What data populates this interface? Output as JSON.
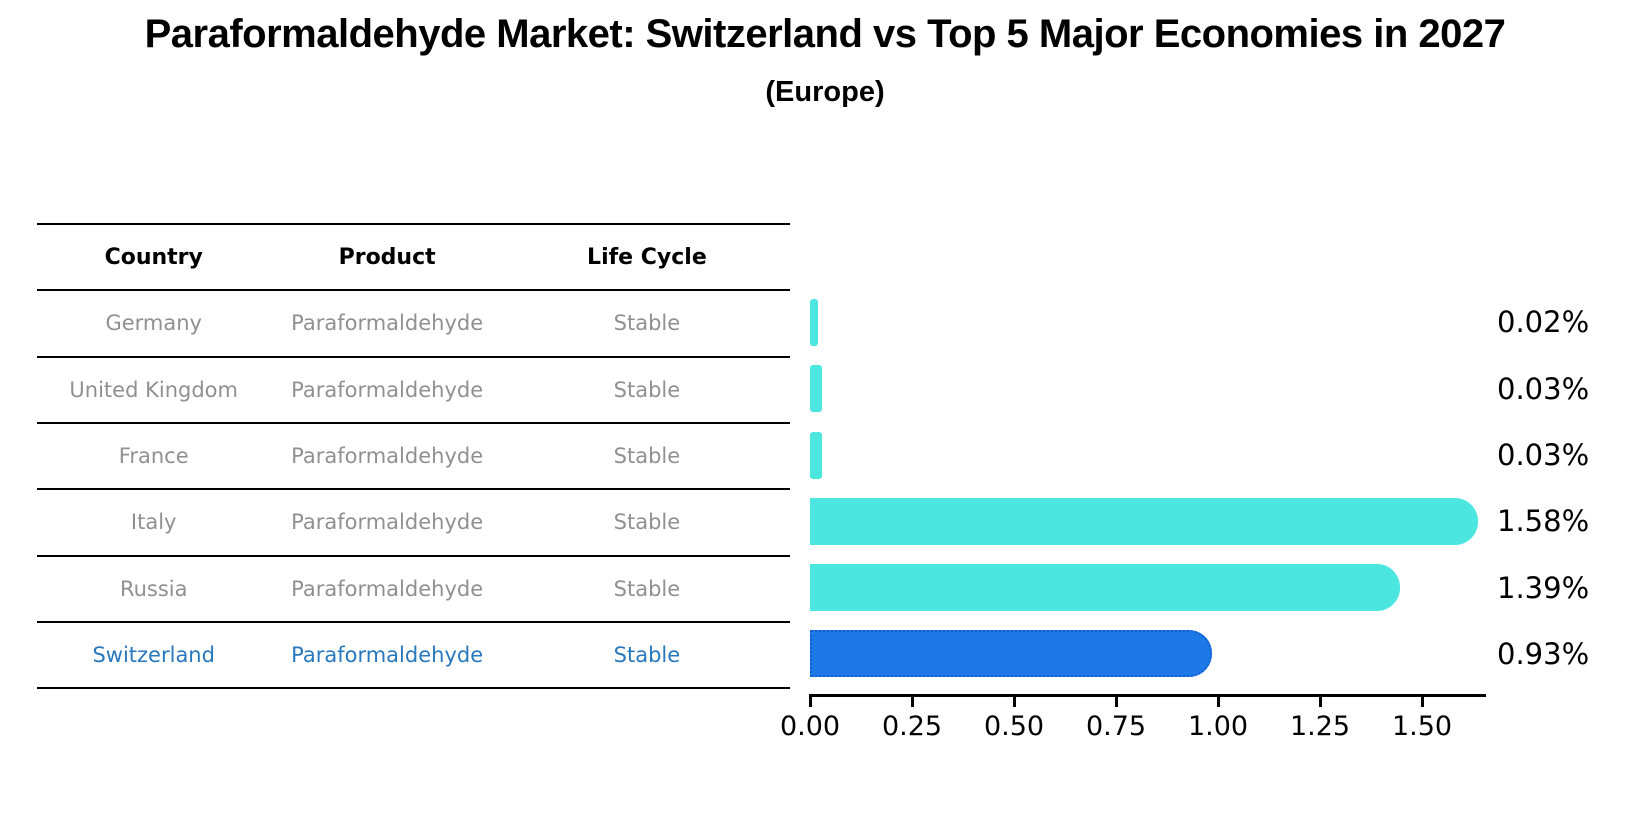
{
  "title": "Paraformaldehyde Market: Switzerland vs Top 5 Major Economies in 2027",
  "subtitle": "(Europe)",
  "table": {
    "headers": [
      "Country",
      "Product",
      "Life Cycle"
    ],
    "rows": [
      {
        "country": "Germany",
        "product": "Paraformaldehyde",
        "life_cycle": "Stable",
        "highlighted": false
      },
      {
        "country": "United Kingdom",
        "product": "Paraformaldehyde",
        "life_cycle": "Stable",
        "highlighted": false
      },
      {
        "country": "France",
        "product": "Paraformaldehyde",
        "life_cycle": "Stable",
        "highlighted": false
      },
      {
        "country": "Italy",
        "product": "Paraformaldehyde",
        "life_cycle": "Stable",
        "highlighted": false
      },
      {
        "country": "Russia",
        "product": "Paraformaldehyde",
        "life_cycle": "Stable",
        "highlighted": false
      },
      {
        "country": "Switzerland",
        "product": "Paraformaldehyde",
        "life_cycle": "Stable",
        "highlighted": true
      }
    ]
  },
  "chart_data": {
    "type": "bar",
    "orientation": "horizontal",
    "title": "Paraformaldehyde Market: Switzerland vs Top 5 Major Economies in 2027",
    "subtitle": "(Europe)",
    "categories": [
      "Germany",
      "United Kingdom",
      "France",
      "Italy",
      "Russia",
      "Switzerland"
    ],
    "values": [
      0.02,
      0.03,
      0.03,
      1.58,
      1.39,
      0.93
    ],
    "value_labels": [
      "0.02%",
      "0.03%",
      "0.03%",
      "1.58%",
      "1.39%",
      "0.93%"
    ],
    "highlight_index": 5,
    "xlabel": "",
    "ylabel": "",
    "xlim": [
      0,
      1.66
    ],
    "x_ticks": [
      "0.00",
      "0.25",
      "0.50",
      "0.75",
      "1.00",
      "1.25",
      "1.50"
    ],
    "x_tick_values": [
      0.0,
      0.25,
      0.5,
      0.75,
      1.0,
      1.25,
      1.5
    ],
    "grid": false,
    "legend": false
  },
  "colors": {
    "bar": "#4BE6E0",
    "highlight_bar": "#1D79E8",
    "highlight_border": "#0F5FD0",
    "highlight_text": "#2878bd",
    "table_text": "#909090",
    "header_text": "#000000",
    "line": "#000000"
  }
}
